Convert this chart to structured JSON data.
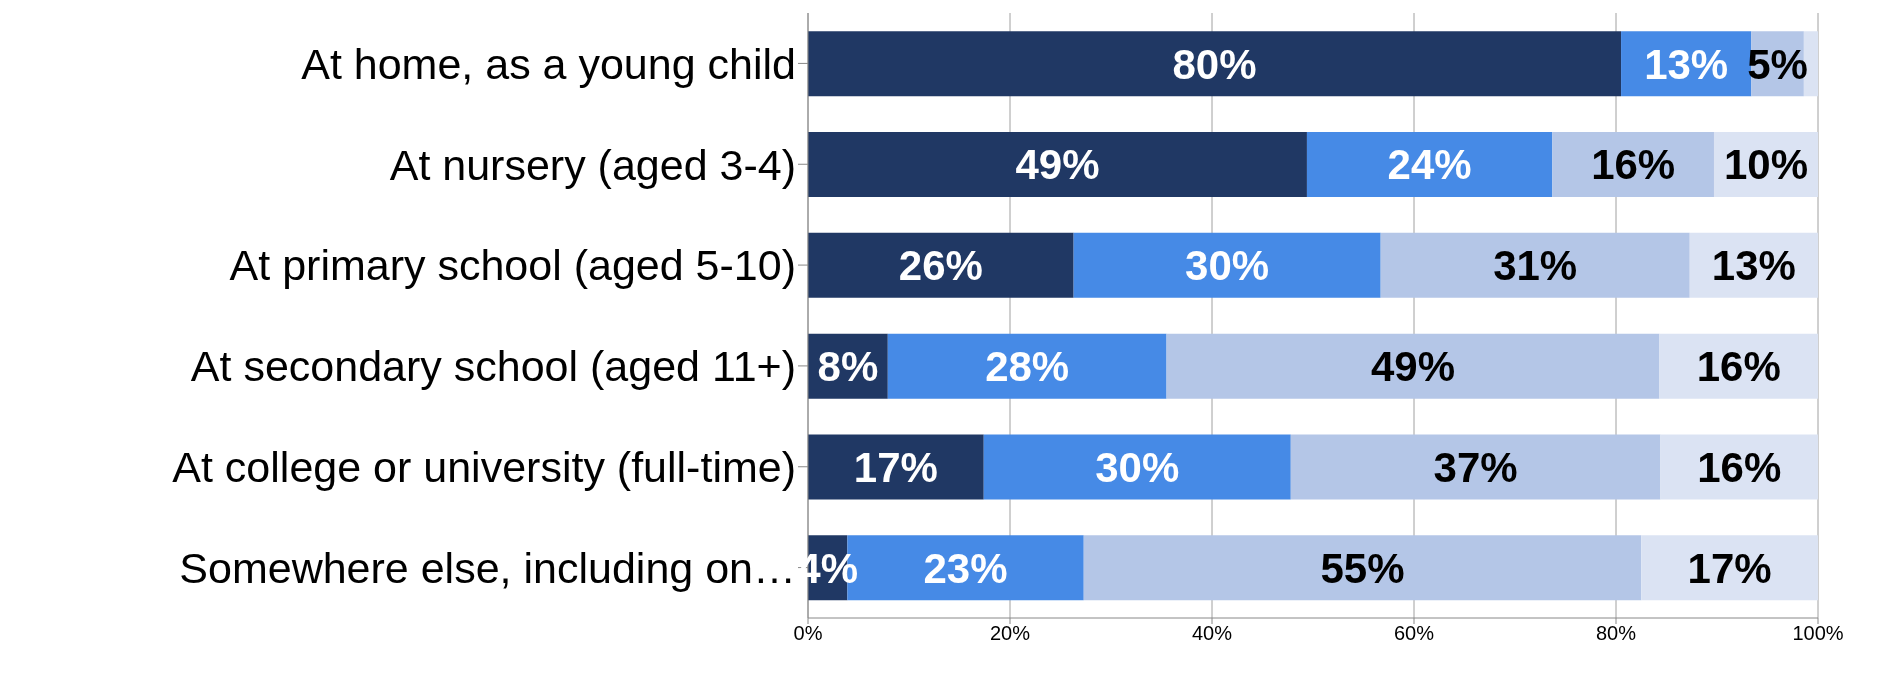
{
  "chart_data": {
    "type": "bar",
    "orientation": "horizontal",
    "stacked": true,
    "categories": [
      "At home, as a young child",
      "At nursery (aged 3-4)",
      "At primary school (aged 5-10)",
      "At secondary school (aged 11+)",
      "At college or university (full-time)",
      "Somewhere else, including on…"
    ],
    "series": [
      {
        "color": "#203864",
        "values": [
          80.5,
          49.4,
          26.3,
          7.9,
          17.4,
          3.9
        ],
        "value_labels": [
          "80%",
          "49%",
          "26%",
          "8%",
          "17%",
          "4%"
        ]
      },
      {
        "color": "#468ae6",
        "values": [
          12.9,
          24.3,
          30.4,
          27.6,
          30.4,
          23.4
        ],
        "value_labels": [
          "13%",
          "24%",
          "30%",
          "28%",
          "30%",
          "23%"
        ]
      },
      {
        "color": "#b4c6e7",
        "values": [
          5.2,
          16.0,
          30.6,
          48.8,
          36.6,
          55.2
        ],
        "value_labels": [
          "5%",
          "16%",
          "31%",
          "49%",
          "37%",
          "55%"
        ]
      },
      {
        "color": "#dbe3f3",
        "values": [
          1.4,
          10.3,
          12.7,
          15.7,
          15.6,
          17.5
        ],
        "value_labels": [
          null,
          "10%",
          "13%",
          "16%",
          "16%",
          "17%"
        ]
      }
    ],
    "xlim": [
      0,
      100
    ],
    "xticks": [
      {
        "value": 0,
        "label": "0%"
      },
      {
        "value": 20,
        "label": "20%"
      },
      {
        "value": 40,
        "label": "40%"
      },
      {
        "value": 60,
        "label": "60%"
      },
      {
        "value": 80,
        "label": "80%"
      },
      {
        "value": 100,
        "label": "100%"
      }
    ],
    "grid": "x",
    "legend": false
  }
}
